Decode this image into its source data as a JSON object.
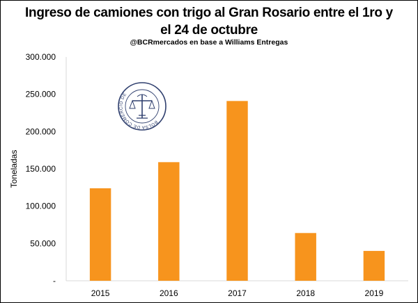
{
  "chart_data": {
    "type": "bar",
    "title_line1": "Ingreso de camiones con trigo al Gran Rosario entre el 1ro y",
    "title_line2": "el 24 de octubre",
    "subtitle": "@BCRmercados en base a Williams Entregas",
    "ylabel": "Toneladas",
    "xlabel": "",
    "categories": [
      "2015",
      "2016",
      "2017",
      "2018",
      "2019"
    ],
    "values": [
      124000,
      159000,
      241000,
      64000,
      40000
    ],
    "ylim": [
      0,
      300000
    ],
    "yticks": [
      {
        "value": 0,
        "label": "-"
      },
      {
        "value": 50000,
        "label": "50.000"
      },
      {
        "value": 100000,
        "label": "100.000"
      },
      {
        "value": 150000,
        "label": "150.000"
      },
      {
        "value": 200000,
        "label": "200.000"
      },
      {
        "value": 250000,
        "label": "250.000"
      },
      {
        "value": 300000,
        "label": "300.000"
      }
    ],
    "grid": false,
    "bar_color": "#F7941D",
    "logo_text": "BOLSA DE COMERCIO DE ROSARIO"
  }
}
